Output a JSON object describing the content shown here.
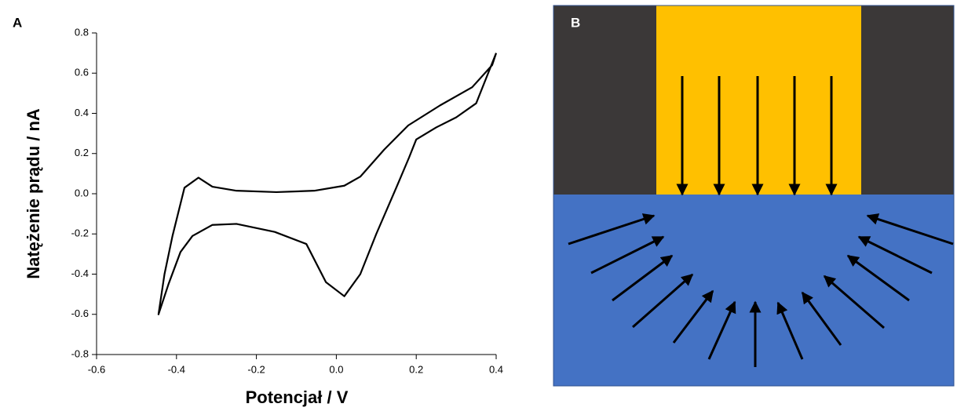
{
  "panel_labels": [
    "A",
    "B"
  ],
  "chart_data": {
    "type": "line",
    "x_label": "Potencjał / V",
    "y_label": "Natężenie prądu / nA",
    "xlim": [
      -0.6,
      0.4
    ],
    "xticks": [
      -0.6,
      -0.4,
      -0.2,
      {
        "value": 0,
        "label": "0.0"
      },
      0.2,
      0.4
    ],
    "ylim": [
      -0.8,
      0.8
    ],
    "yticks": [
      -0.8,
      -0.6,
      -0.4,
      -0.2,
      {
        "value": 0,
        "label": "0.0"
      },
      0.2,
      0.4,
      0.6,
      0.8
    ],
    "series": [
      {
        "color": "#000000",
        "x": [
          0.4,
          0.35,
          0.3,
          0.25,
          0.2,
          0.182,
          0.15,
          0.1,
          0.06,
          0.02,
          -0.026,
          -0.075,
          -0.154,
          -0.25,
          -0.31,
          -0.36,
          -0.39,
          -0.42,
          -0.445,
          -0.43,
          -0.41,
          -0.38,
          -0.345,
          -0.31,
          -0.25,
          -0.15,
          -0.055,
          0.02,
          0.06,
          0.12,
          0.18,
          0.26,
          0.34,
          0.39,
          0.4
        ],
        "values": [
          0.7,
          0.45,
          0.38,
          0.33,
          0.27,
          0.18,
          0.03,
          -0.2,
          -0.4,
          -0.51,
          -0.44,
          -0.25,
          -0.19,
          -0.15,
          -0.155,
          -0.21,
          -0.29,
          -0.45,
          -0.6,
          -0.4,
          -0.21,
          0.03,
          0.08,
          0.035,
          0.015,
          0.008,
          0.015,
          0.04,
          0.085,
          0.22,
          0.34,
          0.44,
          0.53,
          0.64,
          0.7
        ]
      }
    ]
  }
}
